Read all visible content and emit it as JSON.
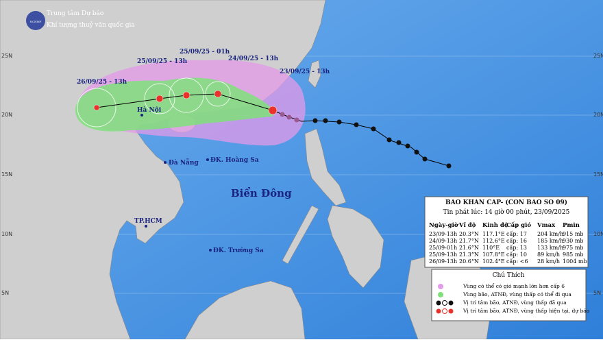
{
  "header": {
    "logo": "NCHMF",
    "title": "Trung tâm Dự báo",
    "subtitle": "Khí tượng thuỷ văn quốc gia"
  },
  "latitude_labels": [
    "25N",
    "20N",
    "15N",
    "10N",
    "5N"
  ],
  "track_labels": [
    "26/09/25 - 13h",
    "25/09/25 - 13h",
    "25/09/25 - 01h",
    "24/09/25 - 13h",
    "23/09/25 - 13h"
  ],
  "places": [
    "Hà Nội",
    "Đà Nẵng",
    "ĐK. Hoàng Sa",
    "Biển Đông",
    "TP.HCM",
    "ĐK. Trường Sa"
  ],
  "table": {
    "title": "BAO KHAN CAP- (CON BAO SO 09)",
    "issued": "Tin phát lúc: 14 giờ 00 phút, 23/09/2025",
    "header": [
      "Ngày-giờ",
      "Vĩ độ",
      "Kinh độ",
      "Cấp gió",
      "Vmax",
      "Pmin"
    ],
    "rows": [
      [
        "23/09-13h",
        "20.3°N",
        "117.1°E",
        "cấp: 17",
        "204 km/h",
        "915 mb"
      ],
      [
        "24/09-13h",
        "21.7°N",
        "112.6°E",
        "cấp: 16",
        "185 km/h",
        "930 mb"
      ],
      [
        "25/09-01h",
        "21.6°N",
        "110°E",
        "cấp: 13",
        "133 km/h",
        "975 mb"
      ],
      [
        "25/09-13h",
        "21.3°N",
        "107.8°E",
        "cấp: 10",
        "89 km/h",
        "985 mb"
      ],
      [
        "26/09-13h",
        "20.6°N",
        "102.4°E",
        "cấp: <6",
        "28 km/h",
        "1004 mb"
      ]
    ]
  },
  "legend": {
    "title": "Chú Thích",
    "items": [
      "Vùng có thể có gió mạnh lớn hơn cấp 6",
      "Vùng bão, ATNĐ, vùng thấp có thể đi qua",
      "Vị trí tâm bão, ATNĐ, vùng thấp đã qua",
      "Vị trí tâm bão, ATNĐ, vùng thấp hiện tại, dự báo"
    ]
  }
}
